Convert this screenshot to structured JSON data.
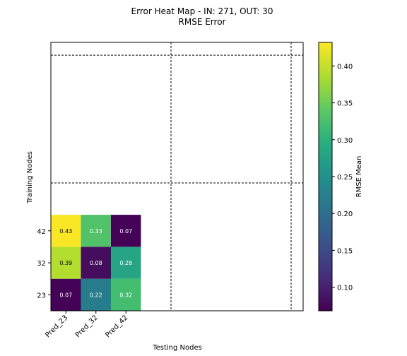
{
  "chart_data": {
    "type": "heatmap",
    "title": "Error Heat Map - IN: 271, OUT: 30",
    "subtitle": "RMSE Error",
    "xlabel": "Testing Nodes",
    "ylabel": "Training Nodes",
    "x_categories": [
      "Pred_23",
      "Pred_32",
      "Pred_42"
    ],
    "y_categories": [
      "23",
      "32",
      "42"
    ],
    "values": [
      [
        0.07,
        0.22,
        0.32
      ],
      [
        0.39,
        0.08,
        0.28
      ],
      [
        0.43,
        0.33,
        0.07
      ]
    ],
    "value_labels": [
      [
        "0.07",
        "0.22",
        "0.32"
      ],
      [
        "0.39",
        "0.08",
        "0.28"
      ],
      [
        "0.43",
        "0.33",
        "0.07"
      ]
    ],
    "colormap": "viridis",
    "colorbar": {
      "label": "RMSE Mean",
      "range": [
        0.068,
        0.432
      ],
      "ticks": [
        "0.10",
        "0.15",
        "0.20",
        "0.25",
        "0.30",
        "0.35",
        "0.40"
      ]
    },
    "grid": false,
    "dashed_separators": true
  }
}
